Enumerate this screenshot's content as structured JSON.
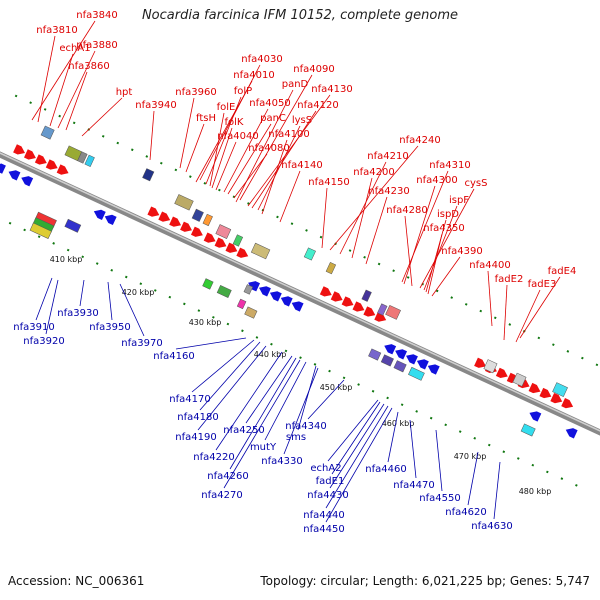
{
  "title": "Nocardia farcinica IFM 10152, complete genome",
  "footer": {
    "accession": "Accession: NC_006361",
    "summary": "Topology: circular; Length: 6,021,225 bp; Genes: 5,747"
  },
  "colors": {
    "forward_gene": "#ee1111",
    "reverse_gene": "#1111dd",
    "top_label": "#dd0000",
    "bottom_label": "#0000aa",
    "backbone": "#888888",
    "tick": "#117711"
  },
  "ticks": [
    "410 kbp",
    "420 kbp",
    "430 kbp",
    "440 kbp",
    "450 kbp",
    "460 kbp",
    "470 kbp",
    "480 kbp"
  ],
  "top_labels": [
    "nfa3840",
    "nfa3810",
    "echA1",
    "nfa3880",
    "nfa3860",
    "hpt",
    "nfa3940",
    "nfa3960",
    "ftsH",
    "nfa4030",
    "nfa4010",
    "folP",
    "folE",
    "folK",
    "nfa4040",
    "nfa4050",
    "panC",
    "nfa4080",
    "nfa4090",
    "panD",
    "nfa4130",
    "nfa4120",
    "lysS",
    "nfa4100",
    "nfa4140",
    "nfa4150",
    "nfa4240",
    "nfa4210",
    "nfa4200",
    "nfa4230",
    "nfa4310",
    "nfa4300",
    "nfa4280",
    "cysS",
    "ispF",
    "ispD",
    "nfa4350",
    "nfa4390",
    "nfa4400",
    "fadE4",
    "fadE2",
    "fadE3"
  ],
  "bottom_labels": [
    "nfa3910",
    "nfa3920",
    "nfa3930",
    "nfa3950",
    "nfa3970",
    "nfa4160",
    "nfa4170",
    "nfa4180",
    "nfa4190",
    "nfa4220",
    "nfa4250",
    "nfa4260",
    "nfa4270",
    "mutY",
    "sms",
    "nfa4330",
    "nfa4340",
    "echA2",
    "fadE1",
    "nfa4430",
    "nfa4440",
    "nfa4450",
    "nfa4460",
    "nfa4470",
    "nfa4550",
    "nfa4620",
    "nfa4630"
  ]
}
